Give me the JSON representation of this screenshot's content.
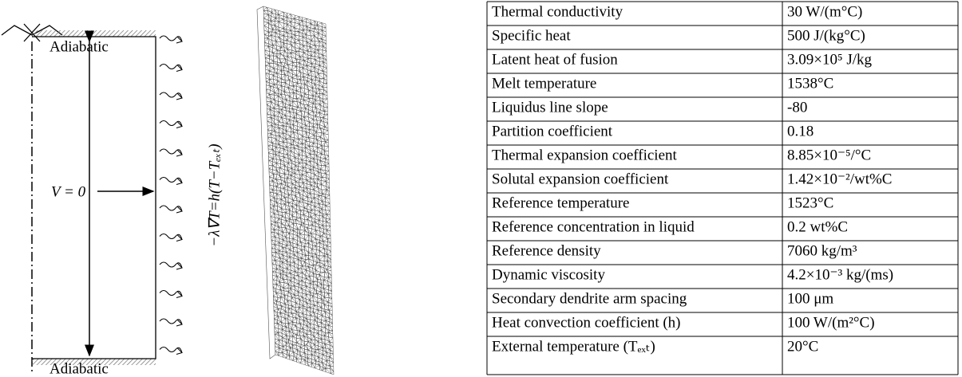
{
  "diagram": {
    "top_label": "Adiabatic",
    "bottom_label": "Adiabatic",
    "velocity_label": "V = 0",
    "boundary_condition": "−λ∇T=h(T−Tₑₓₜ)"
  },
  "table": {
    "rows": [
      [
        "Thermal conductivity",
        "30 W/(m°C)"
      ],
      [
        "Specific heat",
        "500 J/(kg°C)"
      ],
      [
        "Latent heat of fusion",
        "3.09×10⁵ J/kg"
      ],
      [
        "Melt temperature",
        "1538°C"
      ],
      [
        "Liquidus line slope",
        "-80"
      ],
      [
        "Partition coefficient",
        "0.18"
      ],
      [
        "Thermal expansion coefficient",
        "8.85×10⁻⁵/°C"
      ],
      [
        "Solutal expansion coefficient",
        "1.42×10⁻²/wt%C"
      ],
      [
        "Reference temperature",
        "1523°C"
      ],
      [
        "Reference concentration in liquid",
        "0.2 wt%C"
      ],
      [
        "Reference density",
        "7060 kg/m³"
      ],
      [
        "Dynamic viscosity",
        "4.2×10⁻³ kg/(ms)"
      ],
      [
        "Secondary dendrite arm spacing",
        "100 μm"
      ],
      [
        "Heat convection coefficient (h)",
        "100 W/(m²°C)"
      ],
      [
        "External temperature (Tₑₓₜ)",
        "20°C"
      ]
    ]
  }
}
